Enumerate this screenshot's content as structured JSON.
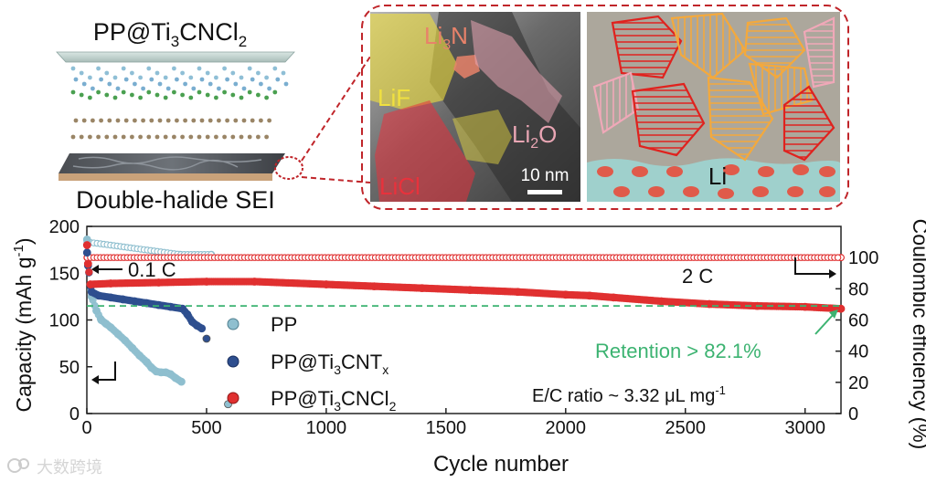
{
  "schematic": {
    "title_parts": [
      "PP@Ti",
      "3",
      "CNCl",
      "2"
    ],
    "sei_label": "Double-halide SEI"
  },
  "tem": {
    "labels": {
      "li3n": [
        "Li",
        "3",
        "N"
      ],
      "lif": "LiF",
      "li2o": [
        "Li",
        "2",
        "O"
      ],
      "licl": "LiCl",
      "scale": "10 nm"
    },
    "colors": {
      "li3n": "#e8826a",
      "lif": "#f0e040",
      "li2o": "#e9a6b4",
      "licl": "#e8323c"
    }
  },
  "cartoon": {
    "label": "Li",
    "colors": {
      "red": "#e0221e",
      "orange": "#f4a93c",
      "pink": "#f0a8b8",
      "teal": "#9fd0cc",
      "bg": "#aca79c"
    }
  },
  "watermark": "大数跨境",
  "chart_data": {
    "type": "scatter",
    "xlabel": "Cycle number",
    "ylabel_left": "Capacity (mAh g",
    "ylabel_left_sup": "-1",
    "ylabel_left_end": ")",
    "ylabel_right": "Coulombic efficiency (%)",
    "xlim": [
      0,
      3150
    ],
    "ylim_left": [
      0,
      200
    ],
    "ylim_right": [
      0,
      120
    ],
    "xticks": [
      0,
      500,
      1000,
      1500,
      2000,
      2500,
      3000
    ],
    "yticks_left": [
      0,
      50,
      100,
      150,
      200
    ],
    "yticks_right": [
      0,
      20,
      40,
      60,
      80,
      100
    ],
    "series": [
      {
        "name": "PP",
        "legend_parts": [
          "PP"
        ],
        "color": "#8fbfcf",
        "axis": "left",
        "points": [
          [
            1,
            186
          ],
          [
            5,
            160
          ],
          [
            20,
            125
          ],
          [
            40,
            110
          ],
          [
            60,
            100
          ],
          [
            80,
            96
          ],
          [
            100,
            92
          ],
          [
            130,
            85
          ],
          [
            160,
            78
          ],
          [
            190,
            70
          ],
          [
            220,
            62
          ],
          [
            250,
            55
          ],
          [
            270,
            49
          ],
          [
            290,
            45
          ],
          [
            310,
            44
          ],
          [
            330,
            44
          ],
          [
            350,
            42
          ],
          [
            370,
            38
          ],
          [
            395,
            34
          ]
        ]
      },
      {
        "name": "PP@Ti3CNTx",
        "legend_parts": [
          "PP@Ti",
          "3",
          "CNT",
          "x"
        ],
        "color": "#2e4f8f",
        "axis": "left",
        "points": [
          [
            1,
            172
          ],
          [
            5,
            158
          ],
          [
            20,
            130
          ],
          [
            50,
            126
          ],
          [
            100,
            124
          ],
          [
            150,
            122
          ],
          [
            200,
            120
          ],
          [
            250,
            118
          ],
          [
            300,
            116
          ],
          [
            350,
            114
          ],
          [
            400,
            112
          ],
          [
            420,
            106
          ],
          [
            440,
            98
          ],
          [
            460,
            94
          ],
          [
            480,
            91
          ]
        ]
      },
      {
        "name": "PP@Ti3CNCl2",
        "legend_parts": [
          "PP@Ti",
          "3",
          "CNCl",
          "2"
        ],
        "color": "#e03030",
        "axis": "left",
        "points": [
          [
            1,
            180
          ],
          [
            5,
            160
          ],
          [
            15,
            138
          ],
          [
            100,
            139
          ],
          [
            300,
            140
          ],
          [
            500,
            141
          ],
          [
            700,
            141
          ],
          [
            1000,
            138
          ],
          [
            1200,
            136
          ],
          [
            1400,
            134
          ],
          [
            1600,
            132
          ],
          [
            1800,
            130
          ],
          [
            2000,
            127
          ],
          [
            2100,
            126
          ],
          [
            2200,
            124
          ],
          [
            2400,
            120
          ],
          [
            2600,
            117
          ],
          [
            2800,
            115
          ],
          [
            3000,
            114
          ],
          [
            3150,
            112
          ]
        ]
      },
      {
        "name": "PP CE",
        "color": "#8fbfcf",
        "axis": "right",
        "points": [
          [
            1,
            110
          ],
          [
            390,
            102
          ],
          [
            520,
            102
          ]
        ]
      },
      {
        "name": "Coulombic efficiency",
        "color": "#e03030",
        "axis": "right",
        "points": [
          [
            1,
            100
          ],
          [
            3150,
            100
          ]
        ]
      }
    ],
    "stray_points": [
      {
        "x": 590,
        "y": 10,
        "color": "#8fbfcf"
      },
      {
        "x": 500,
        "y": 80,
        "color": "#2e4f8f"
      }
    ],
    "reference_line": {
      "y": 115,
      "color": "#3cb371"
    },
    "annotations": {
      "rate_low": "0.1 C",
      "rate_high": "2 C",
      "retention": "Retention > 82.1%",
      "ec_ratio_prefix": "E/C ratio ~ 3.32 μL mg",
      "ec_ratio_sup": "-1"
    }
  }
}
